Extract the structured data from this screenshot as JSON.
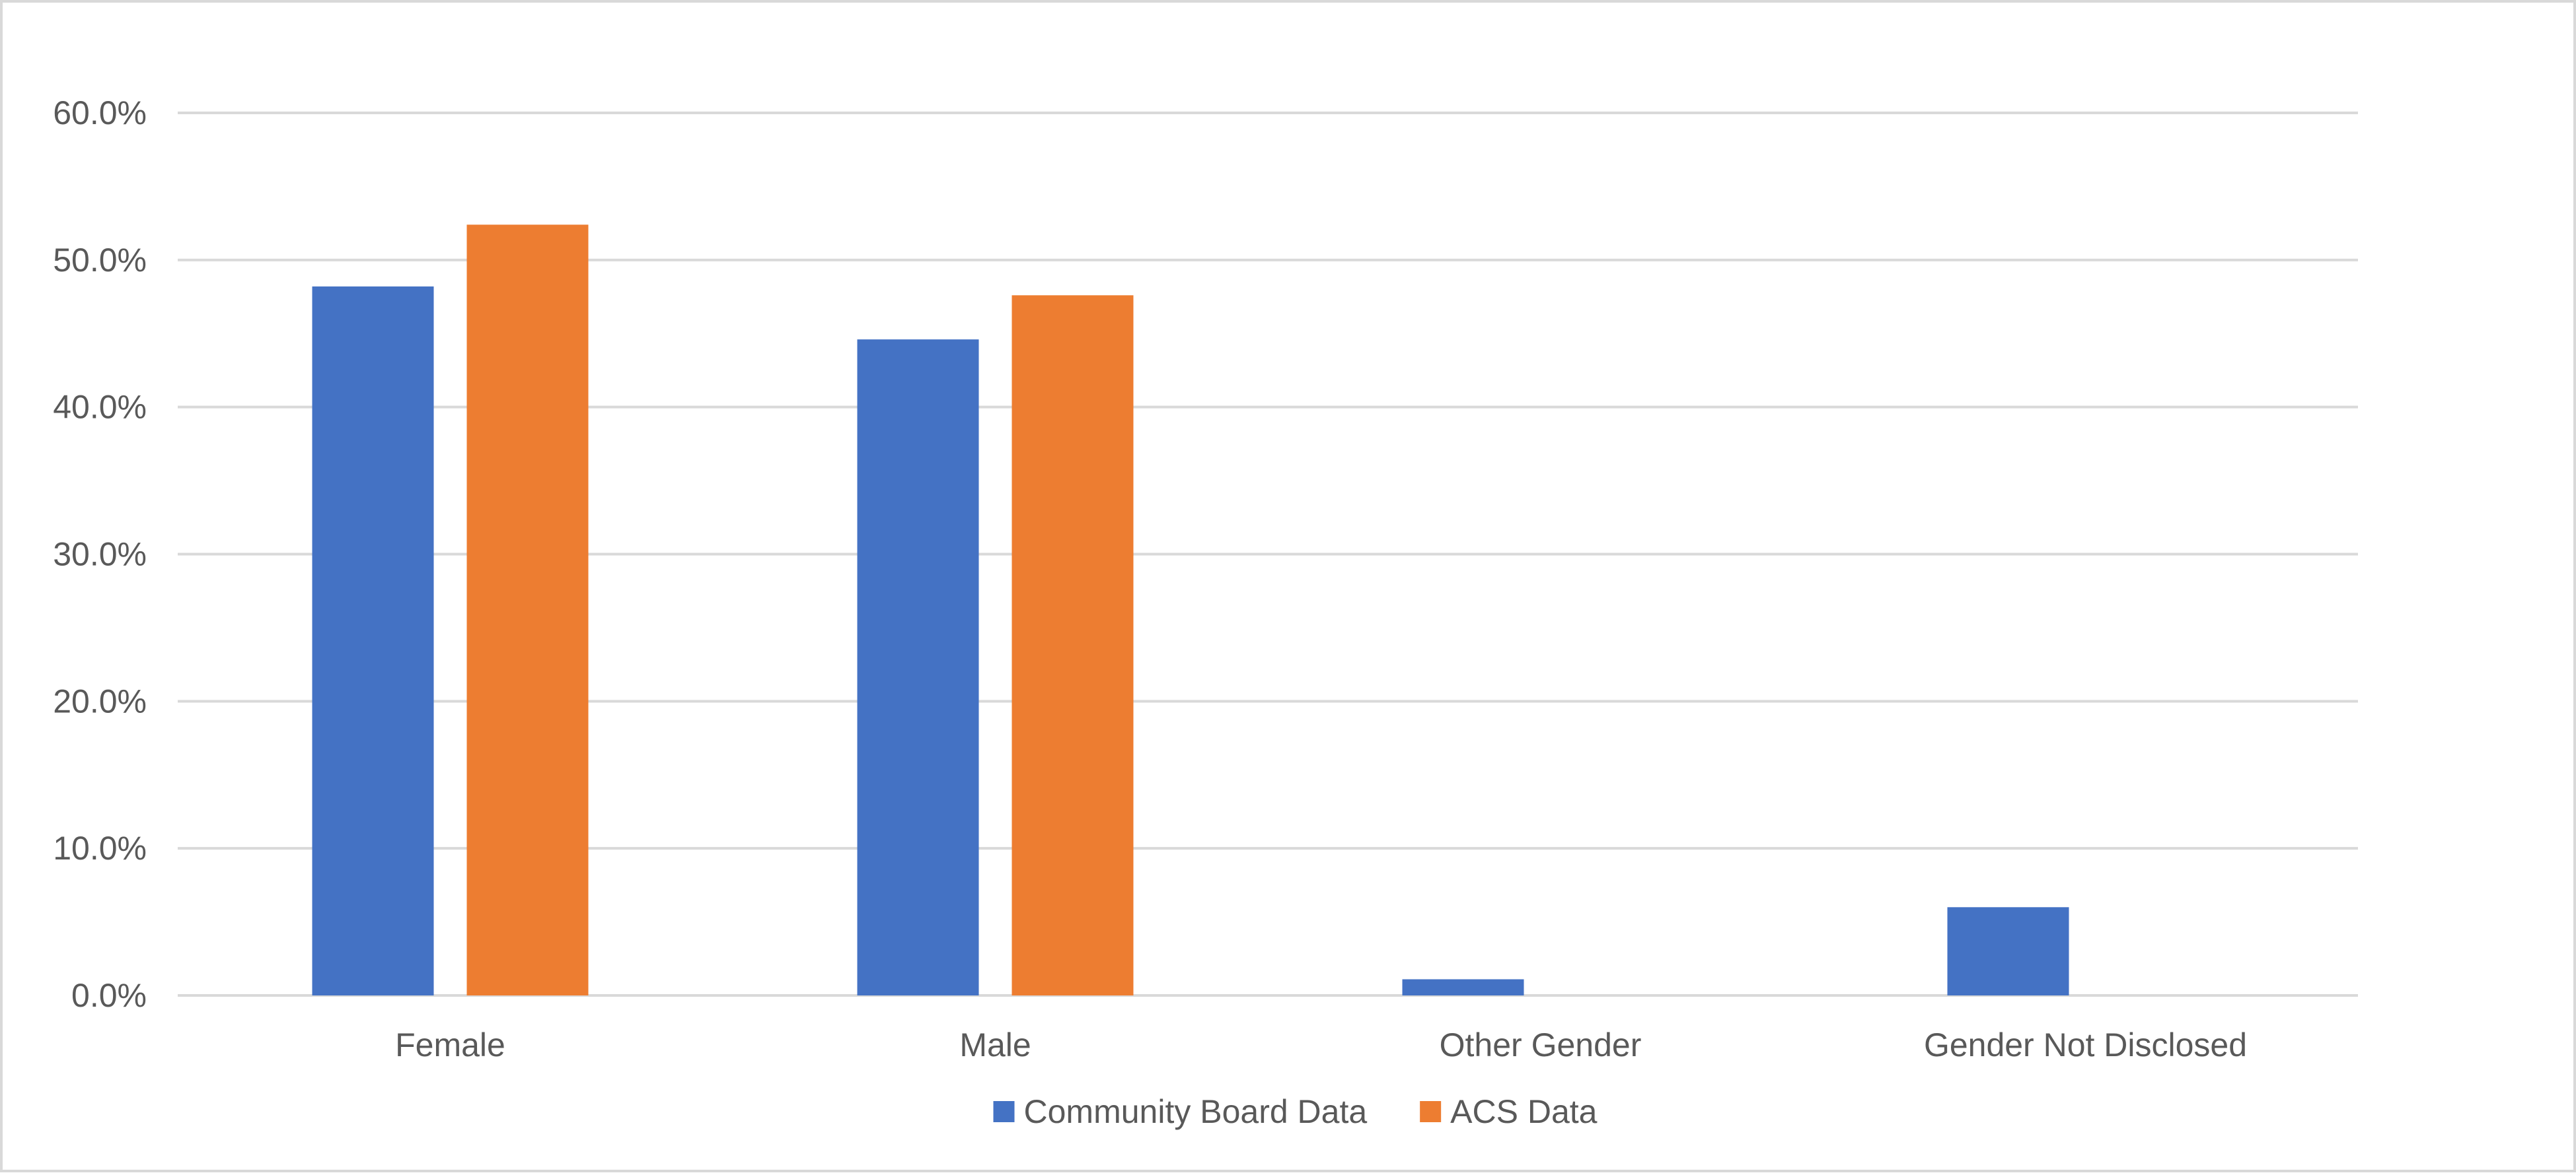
{
  "chart_data": {
    "type": "bar",
    "title": "",
    "xlabel": "",
    "ylabel": "",
    "categories": [
      "Female",
      "Male",
      "Other Gender",
      "Gender Not Disclosed"
    ],
    "series": [
      {
        "name": "Community Board Data",
        "color": "#4472C4",
        "values": [
          48.2,
          44.6,
          1.1,
          6.0
        ]
      },
      {
        "name": "ACS Data",
        "color": "#ED7D31",
        "values": [
          52.4,
          47.6,
          null,
          null
        ]
      }
    ],
    "ylim": [
      0,
      60
    ],
    "yticks": [
      0,
      10,
      20,
      30,
      40,
      50,
      60
    ],
    "ytick_labels": [
      "0.0%",
      "10.0%",
      "20.0%",
      "30.0%",
      "40.0%",
      "50.0%",
      "60.0%"
    ],
    "grid": true,
    "gridline_color": "#d9d9d9",
    "legend_position": "bottom"
  }
}
